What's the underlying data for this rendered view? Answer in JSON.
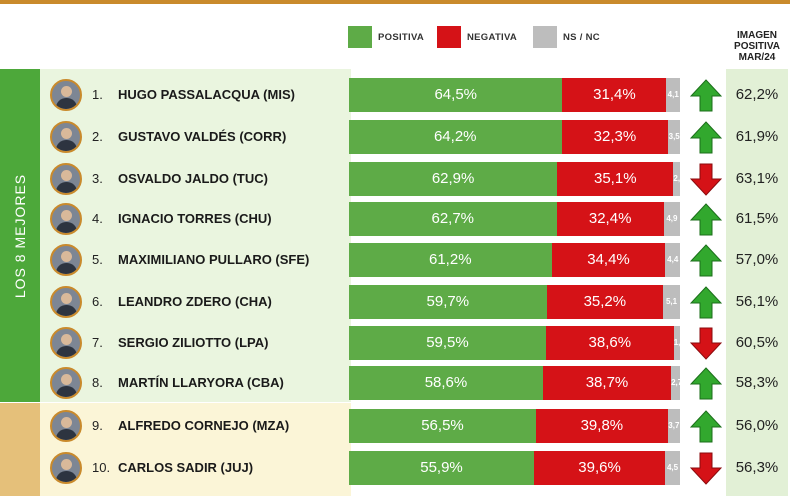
{
  "legend": {
    "positive": "POSITIVA",
    "negative": "NEGATIVA",
    "ns": "NS / NC",
    "colors": {
      "positive": "#5eab47",
      "negative": "#d51217",
      "ns": "#bdbdbd"
    }
  },
  "right_header": {
    "line1": "IMAGEN",
    "line2": "POSITIVA",
    "line3": "MAR/24"
  },
  "side_label": "LOS 8 MEJORES",
  "chart_data": {
    "type": "bar",
    "stacked": true,
    "orientation": "horizontal",
    "categories": [
      "HUGO PASSALACQUA (MIS)",
      "GUSTAVO VALDÉS (CORR)",
      "OSVALDO JALDO (TUC)",
      "IGNACIO TORRES (CHU)",
      "MAXIMILIANO PULLARO (SFE)",
      "LEANDRO ZDERO (CHA)",
      "SERGIO ZILIOTTO (LPA)",
      "MARTÍN LLARYORA (CBA)",
      "ALFREDO CORNEJO (MZA)",
      "CARLOS SADIR (JUJ)"
    ],
    "series": [
      {
        "name": "POSITIVA",
        "values": [
          64.5,
          64.2,
          62.9,
          62.7,
          61.2,
          59.7,
          59.5,
          58.6,
          56.5,
          55.9
        ]
      },
      {
        "name": "NEGATIVA",
        "values": [
          31.4,
          32.3,
          35.1,
          32.4,
          34.4,
          35.2,
          38.6,
          38.7,
          39.8,
          39.6
        ]
      },
      {
        "name": "NS / NC",
        "values": [
          4.1,
          3.5,
          2.0,
          4.9,
          4.4,
          5.1,
          1.9,
          2.7,
          3.7,
          4.5
        ]
      }
    ],
    "previous_positive": [
      "62,2%",
      "61,9%",
      "63,1%",
      "61,5%",
      "57,0%",
      "56,1%",
      "60,5%",
      "58,3%",
      "56,0%",
      "56,3%"
    ],
    "trend": [
      "up",
      "up",
      "down",
      "up",
      "up",
      "up",
      "down",
      "up",
      "up",
      "down"
    ]
  },
  "rows": [
    {
      "rank": "1.",
      "name": "HUGO PASSALACQUA (MIS)",
      "pos": "64,5%",
      "neg": "31,4%",
      "ns": "4,1",
      "prev": "62,2%"
    },
    {
      "rank": "2.",
      "name": "GUSTAVO VALDÉS (CORR)",
      "pos": "64,2%",
      "neg": "32,3%",
      "ns": "3,5",
      "prev": "61,9%"
    },
    {
      "rank": "3.",
      "name": "OSVALDO JALDO (TUC)",
      "pos": "62,9%",
      "neg": "35,1%",
      "ns": "2,0",
      "prev": "63,1%"
    },
    {
      "rank": "4.",
      "name": "IGNACIO TORRES (CHU)",
      "pos": "62,7%",
      "neg": "32,4%",
      "ns": "4,9",
      "prev": "61,5%"
    },
    {
      "rank": "5.",
      "name": "MAXIMILIANO PULLARO (SFE)",
      "pos": "61,2%",
      "neg": "34,4%",
      "ns": "4,4",
      "prev": "57,0%"
    },
    {
      "rank": "6.",
      "name": "LEANDRO ZDERO (CHA)",
      "pos": "59,7%",
      "neg": "35,2%",
      "ns": "5,1",
      "prev": "56,1%"
    },
    {
      "rank": "7.",
      "name": "SERGIO ZILIOTTO (LPA)",
      "pos": "59,5%",
      "neg": "38,6%",
      "ns": "1,9",
      "prev": "60,5%"
    },
    {
      "rank": "8.",
      "name": "MARTÍN LLARYORA (CBA)",
      "pos": "58,6%",
      "neg": "38,7%",
      "ns": "2,7",
      "prev": "58,3%"
    },
    {
      "rank": "9.",
      "name": "ALFREDO CORNEJO (MZA)",
      "pos": "56,5%",
      "neg": "39,8%",
      "ns": "3,7",
      "prev": "56,0%"
    },
    {
      "rank": "10.",
      "name": "CARLOS SADIR (JUJ)",
      "pos": "55,9%",
      "neg": "39,6%",
      "ns": "4,5",
      "prev": "56,3%"
    }
  ]
}
